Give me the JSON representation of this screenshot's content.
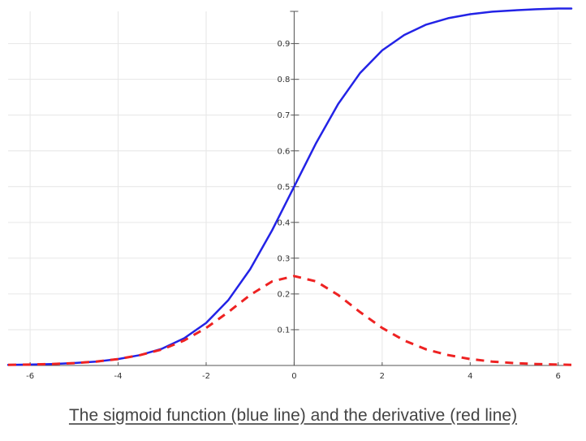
{
  "caption": "The sigmoid function (blue line) and the derivative (red line)",
  "chart_data": {
    "type": "line",
    "title": "",
    "xlabel": "",
    "ylabel": "",
    "xlim": [
      -6.5,
      6.3
    ],
    "ylim": [
      0,
      0.99
    ],
    "grid": true,
    "axes_through_origin": true,
    "x_ticks": [
      "-6",
      "-4",
      "-2",
      "0",
      "2",
      "4",
      "6"
    ],
    "y_ticks": [
      "0.1",
      "0.2",
      "0.3",
      "0.4",
      "0.5",
      "0.6",
      "0.7",
      "0.8",
      "0.9"
    ],
    "series": [
      {
        "color": "#2323e6",
        "style": "solid",
        "x": [
          -6.5,
          -6,
          -5.5,
          -5,
          -4.5,
          -4,
          -3.5,
          -3,
          -2.5,
          -2,
          -1.5,
          -1,
          -0.5,
          0,
          0.5,
          1,
          1.5,
          2,
          2.5,
          3,
          3.5,
          4,
          4.5,
          5,
          5.5,
          6,
          6.3
        ],
        "values": [
          0.0015,
          0.0025,
          0.0041,
          0.0067,
          0.011,
          0.018,
          0.029,
          0.047,
          0.076,
          0.119,
          0.182,
          0.269,
          0.378,
          0.5,
          0.622,
          0.731,
          0.818,
          0.881,
          0.924,
          0.953,
          0.971,
          0.982,
          0.989,
          0.993,
          0.996,
          0.998,
          0.998
        ]
      },
      {
        "color": "#ee2222",
        "style": "dashed",
        "x": [
          -6.5,
          -6,
          -5.5,
          -5,
          -4.5,
          -4,
          -3.5,
          -3,
          -2.5,
          -2,
          -1.5,
          -1,
          -0.5,
          0,
          0.5,
          1,
          1.5,
          2,
          2.5,
          3,
          3.5,
          4,
          4.5,
          5,
          5.5,
          6,
          6.3
        ],
        "values": [
          0.0015,
          0.0025,
          0.0041,
          0.0066,
          0.011,
          0.018,
          0.029,
          0.045,
          0.07,
          0.105,
          0.149,
          0.197,
          0.235,
          0.25,
          0.235,
          0.197,
          0.149,
          0.105,
          0.07,
          0.045,
          0.029,
          0.018,
          0.011,
          0.0066,
          0.0041,
          0.0025,
          0.0018
        ]
      }
    ]
  }
}
